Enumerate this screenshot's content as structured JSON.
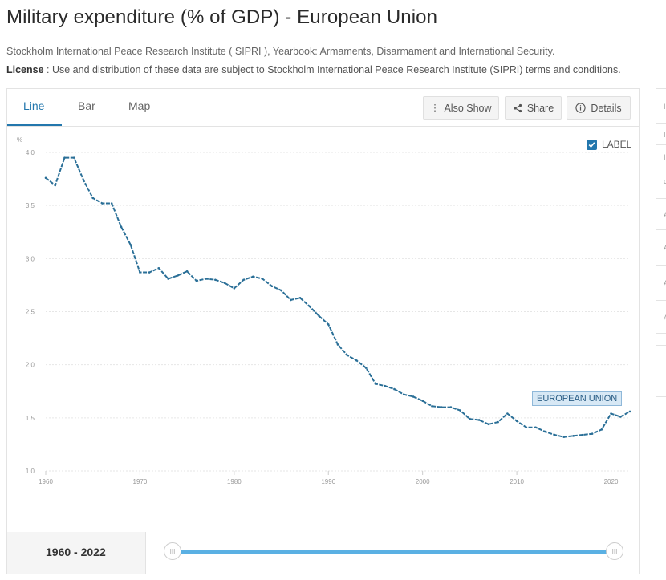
{
  "page": {
    "title": "Military expenditure (% of GDP) - European Union",
    "source": "Stockholm International Peace Research Institute ( SIPRI ), Yearbook: Armaments, Disarmament and International Security.",
    "license_label": "License",
    "license_text": " : Use and distribution of these data are subject to Stockholm International Peace Research Institute (SIPRI) terms and conditions."
  },
  "tabs": [
    {
      "label": "Line",
      "active": true
    },
    {
      "label": "Bar",
      "active": false
    },
    {
      "label": "Map",
      "active": false
    }
  ],
  "buttons": {
    "also_show": "Also Show",
    "share": "Share",
    "details": "Details"
  },
  "label_toggle": {
    "text": "LABEL",
    "checked": true
  },
  "series_label": "EUROPEAN UNION",
  "range": {
    "text": "1960 - 2022",
    "start": 1960,
    "end": 2022
  },
  "side_items": [
    "I",
    "I",
    "I\nc",
    "A",
    "A",
    "A",
    "A",
    "",
    ""
  ],
  "colors": {
    "series": "#2a6f97",
    "accent": "#2377ad",
    "slider": "#5ab0e3"
  },
  "chart_data": {
    "type": "line",
    "title": "",
    "xlabel": "",
    "ylabel": "%",
    "xlim": [
      1960,
      2022
    ],
    "ylim": [
      1.0,
      4.0
    ],
    "x_ticks": [
      1960,
      1970,
      1980,
      1990,
      2000,
      2010,
      2020
    ],
    "y_ticks": [
      "1.0",
      "1.5",
      "2.0",
      "2.5",
      "3.0",
      "3.5",
      "4.0"
    ],
    "grid": true,
    "series": [
      {
        "name": "EUROPEAN UNION",
        "x": [
          1960,
          1961,
          1962,
          1963,
          1964,
          1965,
          1966,
          1967,
          1968,
          1969,
          1970,
          1971,
          1972,
          1973,
          1974,
          1975,
          1976,
          1977,
          1978,
          1979,
          1980,
          1981,
          1982,
          1983,
          1984,
          1985,
          1986,
          1987,
          1988,
          1989,
          1990,
          1991,
          1992,
          1993,
          1994,
          1995,
          1996,
          1997,
          1998,
          1999,
          2000,
          2001,
          2002,
          2003,
          2004,
          2005,
          2006,
          2007,
          2008,
          2009,
          2010,
          2011,
          2012,
          2013,
          2014,
          2015,
          2016,
          2017,
          2018,
          2019,
          2020,
          2021,
          2022
        ],
        "y": [
          3.76,
          3.69,
          3.95,
          3.95,
          3.74,
          3.57,
          3.52,
          3.52,
          3.3,
          3.13,
          2.87,
          2.87,
          2.91,
          2.81,
          2.84,
          2.88,
          2.79,
          2.81,
          2.8,
          2.77,
          2.72,
          2.8,
          2.83,
          2.81,
          2.74,
          2.7,
          2.61,
          2.63,
          2.55,
          2.46,
          2.38,
          2.19,
          2.09,
          2.04,
          1.97,
          1.82,
          1.8,
          1.77,
          1.72,
          1.7,
          1.66,
          1.61,
          1.6,
          1.6,
          1.57,
          1.49,
          1.48,
          1.44,
          1.46,
          1.54,
          1.47,
          1.41,
          1.41,
          1.37,
          1.34,
          1.32,
          1.33,
          1.34,
          1.35,
          1.39,
          1.54,
          1.51,
          1.56
        ]
      }
    ]
  }
}
